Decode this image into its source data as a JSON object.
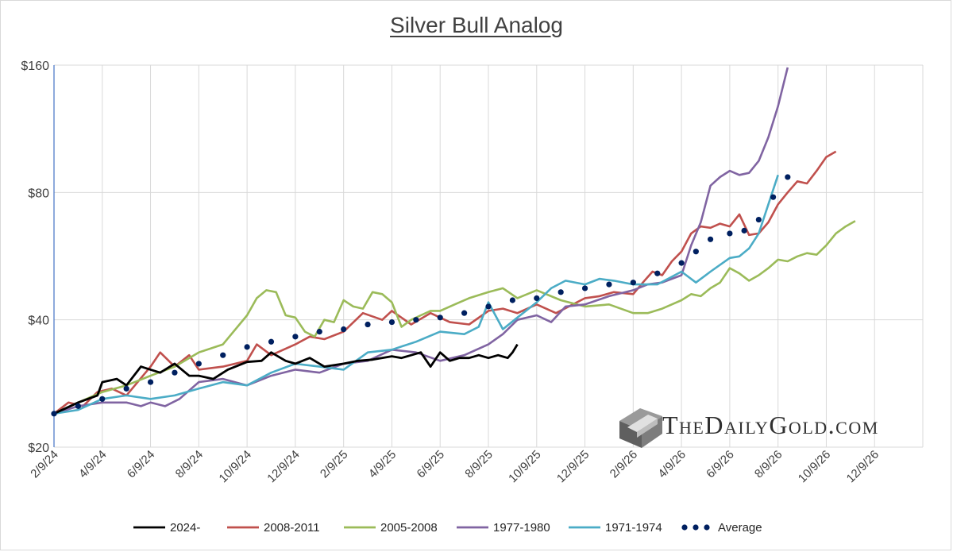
{
  "chart_data": {
    "type": "line",
    "title": "Silver Bull Analog",
    "y_scale": "log",
    "ylim": [
      20,
      160
    ],
    "y_ticks": [
      {
        "value": 20,
        "label": "$20"
      },
      {
        "value": 40,
        "label": "$40"
      },
      {
        "value": 80,
        "label": "$80"
      },
      {
        "value": 160,
        "label": "$160"
      }
    ],
    "x_ticks": [
      "2/9/24",
      "4/9/24",
      "6/9/24",
      "8/9/24",
      "10/9/24",
      "12/9/24",
      "2/9/25",
      "4/9/25",
      "6/9/25",
      "8/9/25",
      "10/9/25",
      "12/9/25",
      "2/9/26",
      "4/9/26",
      "6/9/26",
      "8/9/26",
      "10/9/26",
      "12/9/26"
    ],
    "xlim": [
      0,
      18
    ],
    "grid": true,
    "legend_position": "bottom",
    "series": [
      {
        "name": "2024-",
        "color": "#000000",
        "style": "solid",
        "x": [
          0,
          0.5,
          0.9,
          1.0,
          1.3,
          1.5,
          1.8,
          2.0,
          2.2,
          2.5,
          2.8,
          3.0,
          3.3,
          3.6,
          4.0,
          4.3,
          4.5,
          4.8,
          5.0,
          5.3,
          5.6,
          6.0,
          6.3,
          6.6,
          7.0,
          7.2,
          7.4,
          7.6,
          7.8,
          8.0,
          8.2,
          8.4,
          8.6,
          8.8,
          9.0,
          9.2,
          9.4,
          9.5,
          9.6
        ],
        "y": [
          24.0,
          25.5,
          26.5,
          28.5,
          29.0,
          28.0,
          31.0,
          30.5,
          30.0,
          31.5,
          29.5,
          29.5,
          29.0,
          30.5,
          31.8,
          32.0,
          33.5,
          32.0,
          31.5,
          32.5,
          31.0,
          31.5,
          32.0,
          32.2,
          32.8,
          32.5,
          33.0,
          33.5,
          31.0,
          33.5,
          32.0,
          32.5,
          32.5,
          33.0,
          32.5,
          33.0,
          32.5,
          33.5,
          35.0
        ]
      },
      {
        "name": "2008-2011",
        "color": "#c0504d",
        "style": "solid",
        "x": [
          0,
          0.3,
          0.6,
          0.9,
          1.2,
          1.5,
          2.0,
          2.2,
          2.5,
          2.8,
          3.0,
          3.5,
          4.0,
          4.2,
          4.5,
          5.0,
          5.3,
          5.6,
          6.0,
          6.4,
          6.8,
          7.0,
          7.4,
          7.8,
          8.2,
          8.6,
          9.0,
          9.3,
          9.6,
          10.0,
          10.4,
          11.0,
          11.3,
          11.6,
          12.0,
          12.2,
          12.4,
          12.6,
          12.8,
          13.0,
          13.2,
          13.4,
          13.6,
          13.8,
          14.0,
          14.2,
          14.4,
          14.6,
          14.8,
          15.0,
          15.2,
          15.4,
          15.6,
          15.8,
          16.0,
          16.2
        ],
        "y": [
          24.0,
          25.5,
          25.0,
          27.0,
          27.5,
          26.5,
          31.0,
          33.5,
          31.0,
          33.0,
          30.5,
          31.0,
          32.0,
          35.0,
          33.0,
          35.0,
          36.5,
          36.0,
          37.5,
          41.5,
          40.0,
          42.0,
          39.0,
          41.5,
          39.5,
          39.0,
          42.0,
          42.5,
          41.5,
          43.5,
          41.5,
          45.0,
          45.5,
          46.5,
          46.0,
          49.0,
          52.0,
          51.0,
          55.0,
          58.0,
          64.0,
          66.5,
          66.0,
          67.5,
          66.5,
          71.0,
          63.5,
          64.0,
          68.0,
          75.0,
          80.0,
          85.0,
          84.0,
          90.0,
          97.0,
          100.0
        ]
      },
      {
        "name": "2005-2008",
        "color": "#9bbb59",
        "style": "solid",
        "x": [
          0,
          0.5,
          1.0,
          1.5,
          2.0,
          2.5,
          3.0,
          3.5,
          4.0,
          4.2,
          4.4,
          4.6,
          4.8,
          5.0,
          5.2,
          5.4,
          5.6,
          5.8,
          6.0,
          6.2,
          6.4,
          6.6,
          6.8,
          7.0,
          7.2,
          7.4,
          7.6,
          7.8,
          8.0,
          8.3,
          8.6,
          9.0,
          9.3,
          9.6,
          10.0,
          10.5,
          11.0,
          11.5,
          12.0,
          12.3,
          12.6,
          13.0,
          13.2,
          13.4,
          13.6,
          13.8,
          14.0,
          14.2,
          14.4,
          14.6,
          14.8,
          15.0,
          15.2,
          15.4,
          15.6,
          15.8,
          16.0,
          16.2,
          16.4,
          16.6
        ],
        "y": [
          24.0,
          25.5,
          27.0,
          28.0,
          29.5,
          31.0,
          33.5,
          35.0,
          41.0,
          45.0,
          47.0,
          46.5,
          41.0,
          40.5,
          37.5,
          36.5,
          40.0,
          39.5,
          44.5,
          43.0,
          42.5,
          46.5,
          46.0,
          44.0,
          38.5,
          40.0,
          41.0,
          42.0,
          42.0,
          43.5,
          45.0,
          46.5,
          47.5,
          45.0,
          47.0,
          44.5,
          43.0,
          43.5,
          41.5,
          41.5,
          42.5,
          44.5,
          46.0,
          45.5,
          47.5,
          49.0,
          53.0,
          51.5,
          49.5,
          51.0,
          53.0,
          55.5,
          55.0,
          56.5,
          57.5,
          57.0,
          60.0,
          64.0,
          66.5,
          68.5
        ]
      },
      {
        "name": "1977-1980",
        "color": "#8064a2",
        "style": "solid",
        "x": [
          0,
          0.5,
          1.0,
          1.5,
          1.8,
          2.0,
          2.3,
          2.6,
          3.0,
          3.5,
          4.0,
          4.5,
          5.0,
          5.5,
          6.0,
          6.5,
          7.0,
          7.5,
          8.0,
          8.5,
          9.0,
          9.3,
          9.6,
          10.0,
          10.3,
          10.6,
          11.0,
          11.5,
          12.0,
          12.3,
          12.6,
          13.0,
          13.2,
          13.4,
          13.6,
          13.8,
          14.0,
          14.2,
          14.4,
          14.6,
          14.8,
          15.0,
          15.2
        ],
        "y": [
          24.0,
          25.0,
          25.5,
          25.5,
          25.0,
          25.5,
          25.0,
          26.0,
          28.5,
          29.0,
          28.0,
          29.5,
          30.5,
          30.0,
          31.5,
          32.0,
          34.0,
          33.5,
          32.0,
          33.0,
          35.0,
          37.0,
          40.0,
          41.0,
          39.5,
          43.0,
          43.5,
          45.5,
          47.0,
          48.5,
          49.0,
          51.0,
          60.0,
          68.0,
          83.0,
          87.0,
          90.0,
          88.0,
          89.0,
          95.0,
          108.0,
          128.0,
          158.0
        ]
      },
      {
        "name": "1971-1974",
        "color": "#4bacc6",
        "style": "solid",
        "x": [
          0,
          0.5,
          1.0,
          1.5,
          2.0,
          2.5,
          3.0,
          3.5,
          4.0,
          4.5,
          5.0,
          5.5,
          6.0,
          6.5,
          7.0,
          7.5,
          8.0,
          8.5,
          8.8,
          9.0,
          9.3,
          9.6,
          10.0,
          10.3,
          10.6,
          11.0,
          11.3,
          11.6,
          12.0,
          12.5,
          13.0,
          13.3,
          13.6,
          14.0,
          14.2,
          14.4,
          14.6,
          14.8,
          15.0
        ],
        "y": [
          24.0,
          24.5,
          26.0,
          26.5,
          26.0,
          26.5,
          27.5,
          28.5,
          28.0,
          30.0,
          31.5,
          31.0,
          30.5,
          33.5,
          34.0,
          35.5,
          37.5,
          37.0,
          38.5,
          44.0,
          38.0,
          40.5,
          44.0,
          47.5,
          49.5,
          48.5,
          50.0,
          49.5,
          48.5,
          48.5,
          52.0,
          49.0,
          52.0,
          56.0,
          56.5,
          59.0,
          64.0,
          75.0,
          88.0
        ]
      },
      {
        "name": "Average",
        "color": "#002060",
        "style": "dotted",
        "x": [
          0,
          0.5,
          1.0,
          1.5,
          2.0,
          2.5,
          3.0,
          3.5,
          4.0,
          4.5,
          5.0,
          5.5,
          6.0,
          6.5,
          7.0,
          7.5,
          8.0,
          8.5,
          9.0,
          9.5,
          10.0,
          10.5,
          11.0,
          11.5,
          12.0,
          12.5,
          13.0,
          13.3,
          13.6,
          14.0,
          14.3,
          14.6,
          14.9,
          15.2
        ],
        "y": [
          24.0,
          25.0,
          26.0,
          27.5,
          28.5,
          30.0,
          31.5,
          33.0,
          34.5,
          35.5,
          36.5,
          37.5,
          38.0,
          39.0,
          39.5,
          40.0,
          40.5,
          41.5,
          43.0,
          44.5,
          45.0,
          46.5,
          47.5,
          48.5,
          49.0,
          51.5,
          54.5,
          58.0,
          62.0,
          64.0,
          65.0,
          69.0,
          78.0,
          87.0
        ]
      }
    ]
  },
  "watermark": {
    "text": "TheDailyGold.com",
    "icon": "gold-bar-icon"
  }
}
